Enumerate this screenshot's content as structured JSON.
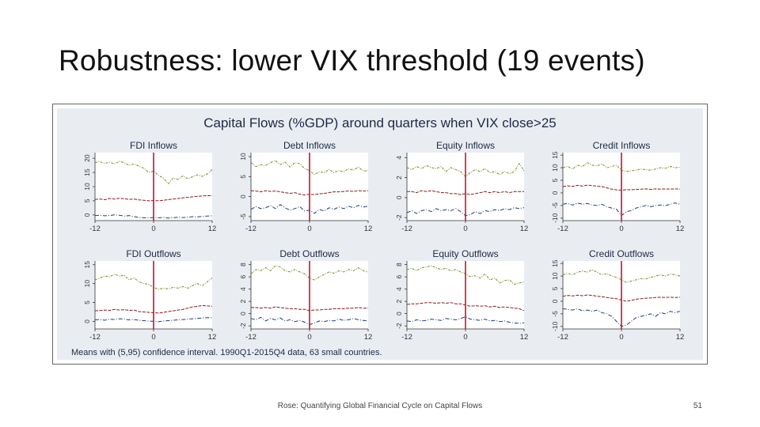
{
  "slide": {
    "title": "Robustness: lower VIX threshold (19 events)",
    "footer": "Rose: Quantifying Global Financial Cycle on Capital Flows",
    "page_number": "51"
  },
  "colors": {
    "background": "#e9edf2",
    "upper_band": "#6b8e23",
    "mean": "#8b1a1a",
    "lower_band": "#1f3b73",
    "event_line": "#c8102e",
    "plot_bg": "#ffffff"
  },
  "chart_data": {
    "type": "line",
    "title": "Capital Flows (%GDP) around quarters when VIX close>25",
    "note": "Means with (5,95) confidence interval. 1990Q1-2015Q4 data, 63 small countries.",
    "x": [
      -12,
      -11,
      -10,
      -9,
      -8,
      -7,
      -6,
      -5,
      -4,
      -3,
      -2,
      -1,
      0,
      1,
      2,
      3,
      4,
      5,
      6,
      7,
      8,
      9,
      10,
      11,
      12
    ],
    "xticks": [
      -12,
      0,
      12
    ],
    "xtick_labels": [
      "-12",
      "0",
      "12"
    ],
    "event_x": 0,
    "grid": false,
    "panels": [
      {
        "title": "FDI Inflows",
        "ylim": [
          -2,
          22
        ],
        "yticks": [
          0,
          5,
          10,
          15,
          20
        ],
        "ytick_labels": [
          "0",
          "5",
          "10",
          "15",
          "20"
        ],
        "upper": [
          18.5,
          18.8,
          18.2,
          18.6,
          18.0,
          19.0,
          18.4,
          17.5,
          18.0,
          17.2,
          16.5,
          15.0,
          15.5,
          14.0,
          13.0,
          11.0,
          13.0,
          12.5,
          13.8,
          12.8,
          13.5,
          14.2,
          13.6,
          14.5,
          16.0
        ],
        "mean": [
          5.5,
          5.6,
          5.4,
          5.8,
          5.6,
          5.9,
          5.7,
          5.5,
          5.6,
          5.3,
          5.2,
          5.0,
          5.1,
          5.0,
          5.2,
          5.4,
          5.6,
          5.8,
          6.0,
          6.2,
          6.4,
          6.6,
          6.7,
          6.8,
          6.8
        ],
        "lower": [
          -0.2,
          -0.1,
          -0.3,
          -0.2,
          0.0,
          -0.1,
          -0.4,
          -0.2,
          -0.6,
          -0.9,
          -1.0,
          -1.0,
          -0.9,
          -1.0,
          -0.9,
          -1.1,
          -1.0,
          -0.8,
          -0.9,
          -0.8,
          -0.6,
          -0.7,
          -0.5,
          -0.4,
          -0.3
        ]
      },
      {
        "title": "Debt Inflows",
        "ylim": [
          -6,
          11
        ],
        "yticks": [
          -5,
          0,
          5,
          10
        ],
        "ytick_labels": [
          "-5",
          "0",
          "5",
          "10"
        ],
        "upper": [
          8.5,
          7.5,
          8.0,
          7.8,
          8.5,
          9.0,
          8.0,
          8.6,
          7.4,
          8.5,
          8.2,
          7.0,
          6.5,
          5.5,
          6.2,
          6.0,
          6.8,
          6.0,
          6.5,
          6.2,
          7.0,
          6.6,
          7.4,
          6.4,
          6.5
        ],
        "mean": [
          1.5,
          1.4,
          1.2,
          1.5,
          1.3,
          1.4,
          1.2,
          1.0,
          0.8,
          1.0,
          0.6,
          0.4,
          0.6,
          0.5,
          0.7,
          0.8,
          1.0,
          1.2,
          1.2,
          1.3,
          1.4,
          1.3,
          1.5,
          1.4,
          1.5
        ],
        "lower": [
          -3.2,
          -2.5,
          -3.0,
          -2.8,
          -2.2,
          -3.0,
          -2.0,
          -2.8,
          -3.4,
          -3.0,
          -2.5,
          -3.6,
          -3.4,
          -4.2,
          -3.2,
          -3.6,
          -2.8,
          -3.2,
          -2.6,
          -3.0,
          -2.4,
          -2.8,
          -2.2,
          -2.6,
          -2.4
        ]
      },
      {
        "title": "Equity Inflows",
        "ylim": [
          -2.3,
          4.5
        ],
        "yticks": [
          -2,
          0,
          2,
          4
        ],
        "ytick_labels": [
          "-2",
          "0",
          "2",
          "4"
        ],
        "upper": [
          3.0,
          2.8,
          3.1,
          2.9,
          3.2,
          3.0,
          2.9,
          3.1,
          2.6,
          3.0,
          2.8,
          2.6,
          2.1,
          2.5,
          2.8,
          2.6,
          2.9,
          2.5,
          2.6,
          2.3,
          2.6,
          2.4,
          2.6,
          3.4,
          2.7
        ],
        "mean": [
          0.6,
          0.6,
          0.5,
          0.7,
          0.6,
          0.7,
          0.6,
          0.5,
          0.5,
          0.4,
          0.4,
          0.3,
          0.4,
          0.3,
          0.4,
          0.5,
          0.6,
          0.5,
          0.6,
          0.5,
          0.6,
          0.5,
          0.6,
          0.6,
          0.6
        ],
        "lower": [
          -1.5,
          -1.3,
          -1.6,
          -1.3,
          -1.2,
          -1.4,
          -1.1,
          -1.3,
          -1.2,
          -1.3,
          -1.1,
          -1.4,
          -1.8,
          -1.7,
          -1.4,
          -1.6,
          -1.3,
          -1.4,
          -1.2,
          -1.3,
          -1.1,
          -1.2,
          -1.0,
          -1.1,
          -1.0
        ]
      },
      {
        "title": "Credit Inflows",
        "ylim": [
          -11,
          16
        ],
        "yticks": [
          -10,
          -5,
          0,
          5,
          10,
          15
        ],
        "ytick_labels": [
          "-10",
          "-5",
          "0",
          "5",
          "10",
          "15"
        ],
        "upper": [
          10.0,
          10.5,
          9.5,
          11.0,
          10.5,
          12.0,
          11.0,
          10.8,
          11.5,
          10.0,
          10.5,
          11.0,
          9.0,
          8.5,
          8.8,
          9.0,
          9.5,
          9.2,
          9.0,
          9.5,
          10.0,
          9.8,
          10.5,
          10.0,
          10.2
        ],
        "mean": [
          2.5,
          2.8,
          2.6,
          3.0,
          2.7,
          3.1,
          2.9,
          2.7,
          2.5,
          2.0,
          1.5,
          1.2,
          1.0,
          1.3,
          1.2,
          1.4,
          1.5,
          1.6,
          1.4,
          1.6,
          1.5,
          1.6,
          1.5,
          1.6,
          1.5
        ],
        "lower": [
          -4.5,
          -4.2,
          -4.8,
          -4.0,
          -4.5,
          -4.2,
          -4.8,
          -5.0,
          -4.5,
          -5.5,
          -6.0,
          -6.5,
          -9.0,
          -7.5,
          -7.0,
          -6.0,
          -5.5,
          -5.0,
          -5.5,
          -5.0,
          -4.8,
          -5.0,
          -4.5,
          -4.0,
          -4.5
        ]
      },
      {
        "title": "FDI Outflows",
        "ylim": [
          -2,
          16
        ],
        "yticks": [
          0,
          5,
          10,
          15
        ],
        "ytick_labels": [
          "0",
          "5",
          "10",
          "15"
        ],
        "upper": [
          11.0,
          11.5,
          12.0,
          11.8,
          12.5,
          12.0,
          12.2,
          11.0,
          11.5,
          10.5,
          10.0,
          9.8,
          9.0,
          8.5,
          8.8,
          8.6,
          9.0,
          8.8,
          9.2,
          8.8,
          9.5,
          10.0,
          9.5,
          10.5,
          11.5
        ],
        "mean": [
          2.8,
          2.9,
          3.0,
          2.9,
          3.2,
          3.0,
          3.1,
          2.9,
          3.0,
          2.6,
          2.5,
          2.4,
          2.3,
          2.2,
          2.4,
          2.6,
          2.8,
          3.0,
          3.2,
          3.5,
          3.8,
          4.0,
          4.2,
          4.1,
          4.0
        ],
        "lower": [
          0.4,
          0.5,
          0.3,
          0.6,
          0.5,
          0.7,
          0.6,
          0.4,
          0.5,
          0.3,
          0.2,
          0.1,
          0.0,
          -0.1,
          0.1,
          0.2,
          0.3,
          0.4,
          0.5,
          0.6,
          0.7,
          0.8,
          0.9,
          1.0,
          1.0
        ]
      },
      {
        "title": "Debt Outflows",
        "ylim": [
          -2.5,
          8.6
        ],
        "yticks": [
          -2,
          0,
          2,
          4,
          6,
          8
        ],
        "ytick_labels": [
          "-2",
          "0",
          "2",
          "4",
          "6",
          "8"
        ],
        "upper": [
          6.5,
          7.2,
          7.0,
          7.5,
          7.0,
          7.8,
          7.6,
          7.0,
          6.8,
          7.2,
          6.8,
          6.5,
          5.8,
          5.5,
          6.0,
          6.4,
          6.8,
          6.6,
          7.0,
          6.8,
          7.2,
          7.0,
          7.5,
          7.0,
          6.8
        ],
        "mean": [
          1.0,
          1.0,
          0.9,
          1.0,
          0.9,
          1.1,
          1.0,
          0.9,
          0.8,
          0.8,
          0.7,
          0.7,
          0.5,
          0.6,
          0.6,
          0.7,
          0.7,
          0.8,
          0.8,
          0.8,
          0.9,
          0.9,
          1.0,
          0.9,
          0.9
        ],
        "lower": [
          -0.8,
          -1.0,
          -0.6,
          -1.2,
          -0.8,
          -1.0,
          -0.7,
          -1.2,
          -1.0,
          -1.3,
          -1.1,
          -1.4,
          -1.8,
          -1.5,
          -1.2,
          -1.3,
          -1.1,
          -1.2,
          -0.9,
          -1.1,
          -1.0,
          -0.8,
          -1.0,
          -1.1,
          -1.2
        ]
      },
      {
        "title": "Equity Outflows",
        "ylim": [
          -2.5,
          8.6
        ],
        "yticks": [
          -2,
          0,
          2,
          4,
          6,
          8
        ],
        "ytick_labels": [
          "-2",
          "0",
          "2",
          "4",
          "6",
          "8"
        ],
        "upper": [
          7.2,
          7.4,
          7.0,
          7.5,
          7.6,
          7.8,
          7.5,
          7.2,
          7.4,
          7.0,
          7.2,
          6.8,
          6.5,
          6.0,
          6.2,
          5.8,
          6.5,
          5.5,
          5.8,
          5.0,
          5.4,
          5.5,
          4.8,
          5.0,
          5.2
        ],
        "mean": [
          1.5,
          1.6,
          1.6,
          1.7,
          1.8,
          1.8,
          1.7,
          1.8,
          1.7,
          1.8,
          1.6,
          1.6,
          1.4,
          1.2,
          1.3,
          1.2,
          1.3,
          1.1,
          1.2,
          1.0,
          1.1,
          1.0,
          0.9,
          0.8,
          0.5
        ],
        "lower": [
          -1.2,
          -1.3,
          -1.0,
          -1.2,
          -1.1,
          -0.9,
          -1.0,
          -1.1,
          -0.8,
          -0.9,
          -1.0,
          -0.8,
          -0.5,
          -0.9,
          -1.0,
          -1.1,
          -0.9,
          -1.2,
          -1.1,
          -1.3,
          -1.2,
          -1.4,
          -1.5,
          -1.6,
          -1.5
        ]
      },
      {
        "title": "Credit Outflows",
        "ylim": [
          -11,
          16
        ],
        "yticks": [
          -10,
          -5,
          0,
          5,
          10,
          15
        ],
        "ytick_labels": [
          "-10",
          "-5",
          "0",
          "5",
          "10",
          "15"
        ],
        "upper": [
          10.5,
          11.0,
          10.5,
          11.5,
          12.0,
          11.5,
          12.5,
          11.5,
          10.5,
          11.0,
          10.0,
          9.5,
          8.5,
          7.5,
          8.0,
          8.5,
          9.0,
          8.8,
          9.5,
          10.0,
          10.5,
          10.0,
          10.8,
          10.5,
          10.0
        ],
        "mean": [
          2.0,
          2.3,
          2.1,
          2.4,
          2.2,
          2.5,
          2.3,
          2.0,
          1.8,
          1.5,
          1.2,
          1.0,
          0.5,
          0.0,
          0.3,
          0.8,
          1.0,
          1.2,
          1.3,
          1.5,
          1.6,
          1.5,
          1.6,
          1.5,
          1.6
        ],
        "lower": [
          -3.0,
          -3.2,
          -3.5,
          -3.0,
          -3.8,
          -3.5,
          -4.0,
          -3.5,
          -4.5,
          -5.0,
          -6.0,
          -8.0,
          -10.0,
          -9.5,
          -8.0,
          -6.5,
          -6.0,
          -5.5,
          -5.0,
          -6.0,
          -4.5,
          -5.0,
          -4.0,
          -4.5,
          -4.0
        ]
      }
    ]
  }
}
